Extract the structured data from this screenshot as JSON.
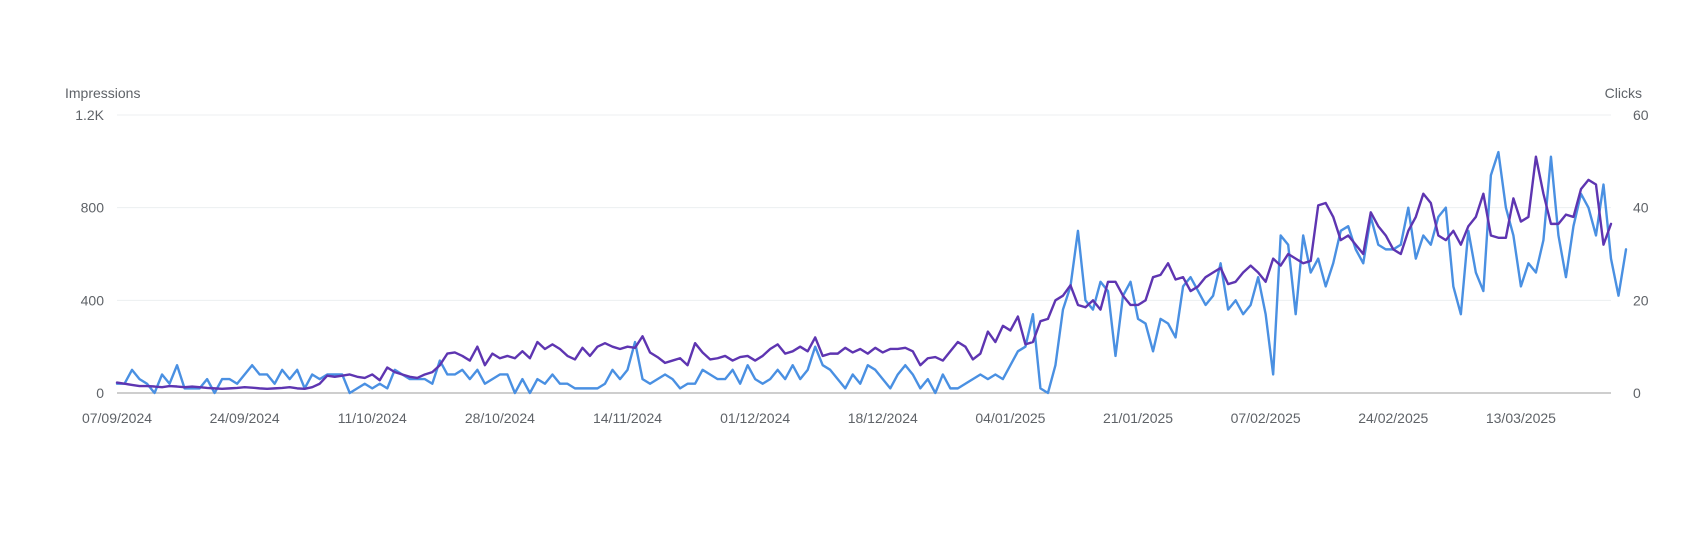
{
  "chart_data": {
    "type": "line",
    "title": "",
    "left_axis": {
      "title": "Impressions",
      "ticks": [
        {
          "value": 0,
          "label": "0"
        },
        {
          "value": 400,
          "label": "400"
        },
        {
          "value": 800,
          "label": "800"
        },
        {
          "value": 1200,
          "label": "1.2K"
        }
      ],
      "range": [
        0,
        1200
      ]
    },
    "right_axis": {
      "title": "Clicks",
      "ticks": [
        {
          "value": 0,
          "label": "0"
        },
        {
          "value": 20,
          "label": "20"
        },
        {
          "value": 40,
          "label": "40"
        },
        {
          "value": 60,
          "label": "60"
        }
      ],
      "range": [
        0,
        60
      ]
    },
    "x_axis": {
      "start_date": "07/09/2024",
      "end_date": "27/03/2025",
      "tick_labels": [
        "07/09/2024",
        "24/09/2024",
        "11/10/2024",
        "28/10/2024",
        "14/11/2024",
        "01/12/2024",
        "18/12/2024",
        "04/01/2025",
        "21/01/2025",
        "07/02/2025",
        "24/02/2025",
        "13/03/2025"
      ]
    },
    "grid": true,
    "legend": "none",
    "colors": {
      "impressions": "#5e35b1",
      "clicks": "#4a90e2",
      "grid": "#eceff1",
      "baseline": "#9e9e9e",
      "text": "#5f6368"
    },
    "series": [
      {
        "key": "impressions",
        "axis": "left",
        "values": [
          45,
          40,
          35,
          30,
          30,
          28,
          25,
          30,
          28,
          25,
          28,
          25,
          22,
          20,
          18,
          20,
          22,
          25,
          23,
          20,
          18,
          20,
          22,
          25,
          20,
          18,
          25,
          40,
          75,
          70,
          75,
          80,
          70,
          65,
          80,
          55,
          110,
          90,
          80,
          70,
          65,
          80,
          90,
          120,
          170,
          175,
          160,
          140,
          200,
          120,
          170,
          150,
          160,
          150,
          180,
          150,
          220,
          190,
          210,
          190,
          160,
          145,
          195,
          160,
          200,
          215,
          200,
          190,
          200,
          195,
          245,
          175,
          155,
          130,
          140,
          150,
          120,
          215,
          175,
          145,
          150,
          160,
          140,
          155,
          160,
          140,
          160,
          190,
          210,
          170,
          180,
          200,
          180,
          240,
          160,
          170,
          170,
          195,
          175,
          190,
          170,
          195,
          175,
          190,
          190,
          195,
          180,
          120,
          150,
          155,
          140,
          180,
          220,
          200,
          145,
          170,
          265,
          220,
          290,
          270,
          330,
          210,
          220,
          310,
          320,
          400,
          420,
          465,
          380,
          370,
          400,
          360,
          480,
          480,
          420,
          380,
          380,
          400,
          500,
          510,
          560,
          490,
          500,
          440,
          460,
          500,
          520,
          540,
          470,
          480,
          520,
          550,
          520,
          480,
          580,
          550,
          600,
          580,
          560,
          570,
          810,
          820,
          760,
          660,
          680,
          640,
          600,
          780,
          720,
          680,
          620,
          600,
          700,
          760,
          860,
          820,
          680,
          660,
          700,
          640,
          720,
          760,
          860,
          680,
          670,
          670,
          840,
          740,
          760,
          1020,
          860,
          730,
          730,
          770,
          760,
          880,
          920,
          900,
          640,
          730
        ]
      },
      {
        "key": "clicks",
        "axis": "right",
        "values": [
          2,
          2,
          5,
          3,
          2,
          0,
          4,
          2,
          6,
          1,
          1,
          1,
          3,
          0,
          3,
          3,
          2,
          4,
          6,
          4,
          4,
          2,
          5,
          3,
          5,
          1,
          4,
          3,
          4,
          4,
          4,
          0,
          1,
          2,
          1,
          2,
          1,
          5,
          4,
          3,
          3,
          3,
          2,
          7,
          4,
          4,
          5,
          3,
          5,
          2,
          3,
          4,
          4,
          0,
          3,
          0,
          3,
          2,
          4,
          2,
          2,
          1,
          1,
          1,
          1,
          2,
          5,
          3,
          5,
          11,
          3,
          2,
          3,
          4,
          3,
          1,
          2,
          2,
          5,
          4,
          3,
          3,
          5,
          2,
          6,
          3,
          2,
          3,
          5,
          3,
          6,
          3,
          5,
          10,
          6,
          5,
          3,
          1,
          4,
          2,
          6,
          5,
          3,
          1,
          4,
          6,
          4,
          1,
          3,
          0,
          4,
          1,
          1,
          2,
          3,
          4,
          3,
          4,
          3,
          6,
          9,
          10,
          17,
          1,
          0,
          6,
          18,
          23,
          35,
          20,
          18,
          24,
          22,
          8,
          21,
          24,
          16,
          15,
          9,
          16,
          15,
          12,
          23,
          25,
          22,
          19,
          21,
          28,
          18,
          20,
          17,
          19,
          25,
          17,
          4,
          34,
          32,
          17,
          34,
          26,
          29,
          23,
          28,
          35,
          36,
          31,
          28,
          38,
          32,
          31,
          31,
          32,
          40,
          29,
          34,
          32,
          38,
          40,
          23,
          17,
          35,
          26,
          22,
          47,
          52,
          40,
          34,
          23,
          28,
          26,
          33,
          51,
          34,
          25,
          36,
          43,
          40,
          34,
          45,
          29,
          21,
          31
        ]
      }
    ]
  }
}
